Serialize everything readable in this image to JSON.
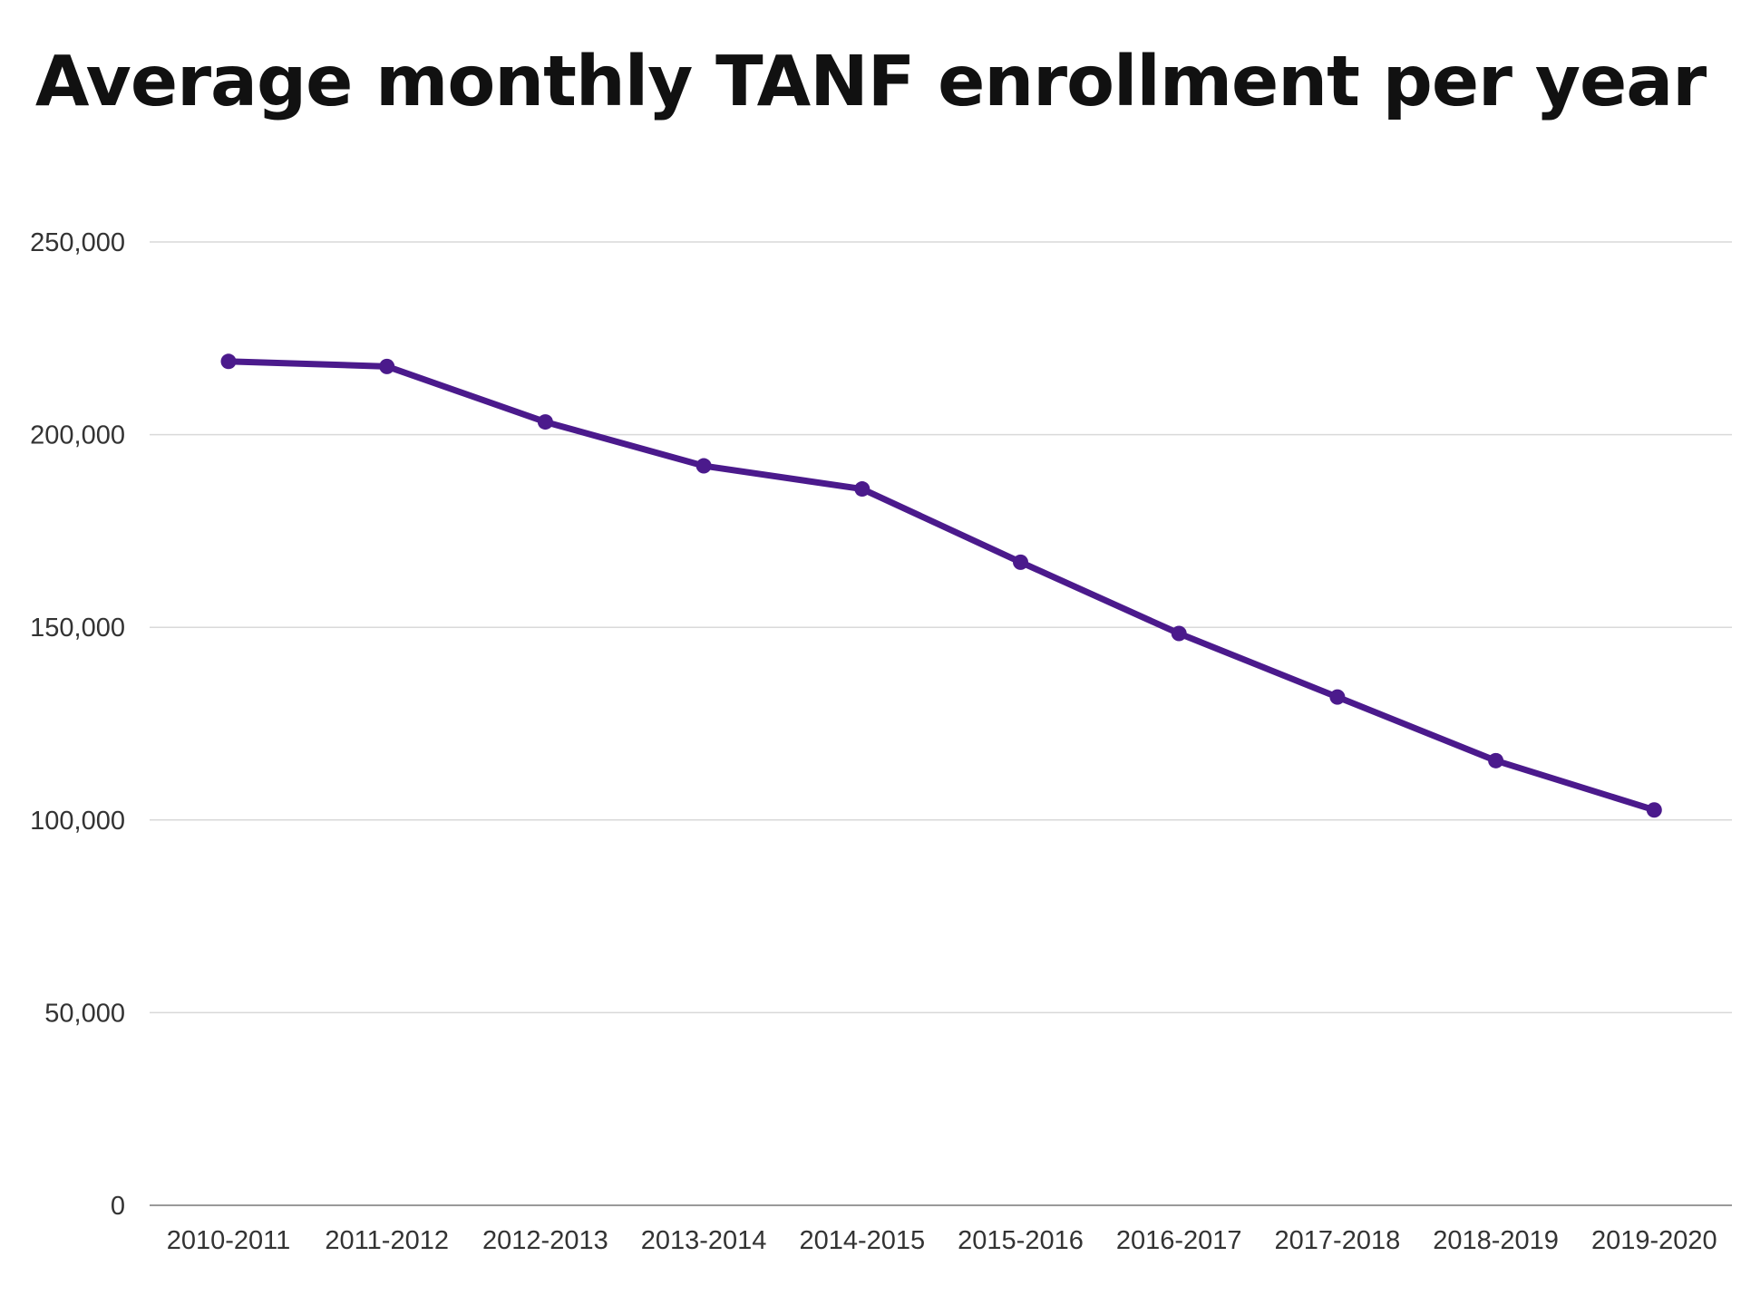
{
  "chart_data": {
    "type": "line",
    "title": "Average monthly TANF enrollment  per year",
    "xlabel": "",
    "ylabel": "",
    "categories": [
      "2010-2011",
      "2011-2012",
      "2012-2013",
      "2013-2014",
      "2014-2015",
      "2015-2016",
      "2016-2017",
      "2017-2018",
      "2018-2019",
      "2019-2020"
    ],
    "series": [
      {
        "values": [
          219000,
          217700,
          203300,
          191900,
          185900,
          166900,
          148400,
          131900,
          115400,
          102600
        ]
      }
    ],
    "ylim": [
      0,
      250000
    ],
    "yticks": [
      0,
      50000,
      100000,
      150000,
      200000,
      250000
    ],
    "ytick_labels": [
      "0",
      "50,000",
      "100,000",
      "150,000",
      "200,000",
      "250,000"
    ],
    "grid": true,
    "legend": "none",
    "line_color": "#4b1a8c",
    "grid_color": "#d9d9d9",
    "axis_color": "#9a9a9a"
  }
}
